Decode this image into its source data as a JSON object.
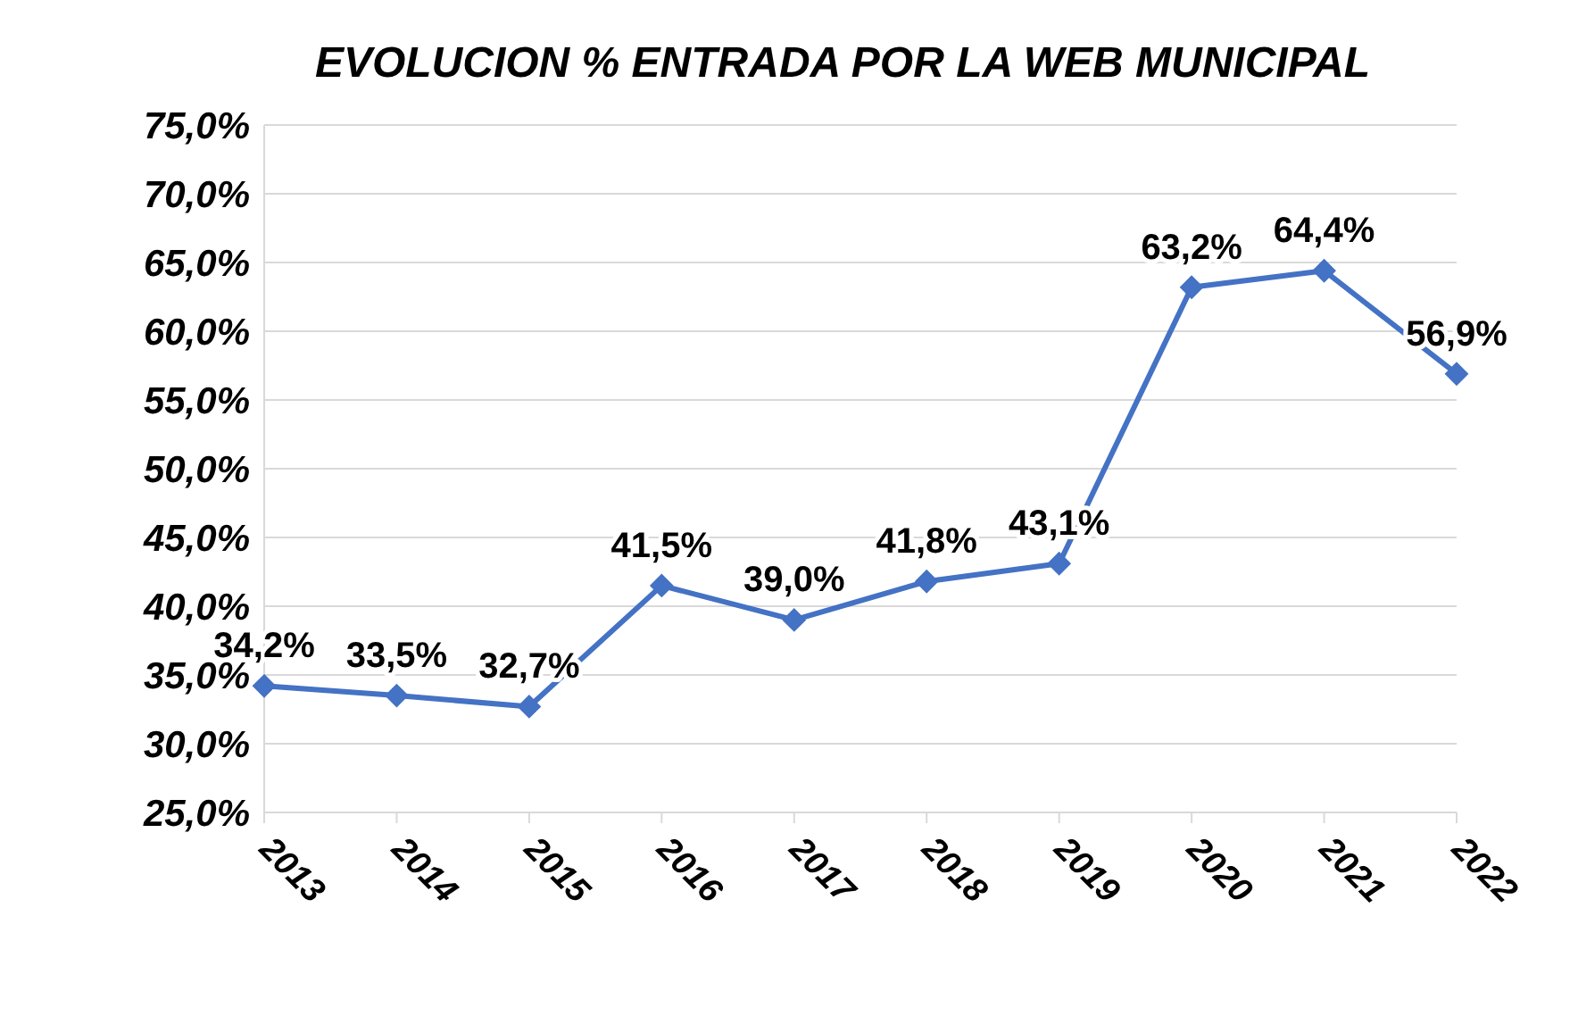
{
  "chart_data": {
    "type": "line",
    "title": "EVOLUCION % ENTRADA POR LA WEB MUNICIPAL",
    "categories": [
      "2013",
      "2014",
      "2015",
      "2016",
      "2017",
      "2018",
      "2019",
      "2020",
      "2021",
      "2022"
    ],
    "series": [
      {
        "color": "#4472c4",
        "values": [
          34.2,
          33.5,
          32.7,
          41.5,
          39.0,
          41.8,
          43.1,
          63.2,
          64.4,
          56.9
        ],
        "value_labels": [
          "34,2%",
          "33,5%",
          "32,7%",
          "41,5%",
          "39,0%",
          "41,8%",
          "43,1%",
          "63,2%",
          "64,4%",
          "56,9%"
        ]
      }
    ],
    "ylim": [
      25,
      75
    ],
    "yticks": [
      {
        "value": 25,
        "label": "25,0%"
      },
      {
        "value": 30,
        "label": "30,0%"
      },
      {
        "value": 35,
        "label": "35,0%"
      },
      {
        "value": 40,
        "label": "40,0%"
      },
      {
        "value": 45,
        "label": "45,0%"
      },
      {
        "value": 50,
        "label": "50,0%"
      },
      {
        "value": 55,
        "label": "55,0%"
      },
      {
        "value": 60,
        "label": "60,0%"
      },
      {
        "value": 65,
        "label": "65,0%"
      },
      {
        "value": 70,
        "label": "70,0%"
      },
      {
        "value": 75,
        "label": "75,0%"
      }
    ],
    "grid": "y",
    "marker": "diamond",
    "line_style": "solid",
    "legend": false
  }
}
